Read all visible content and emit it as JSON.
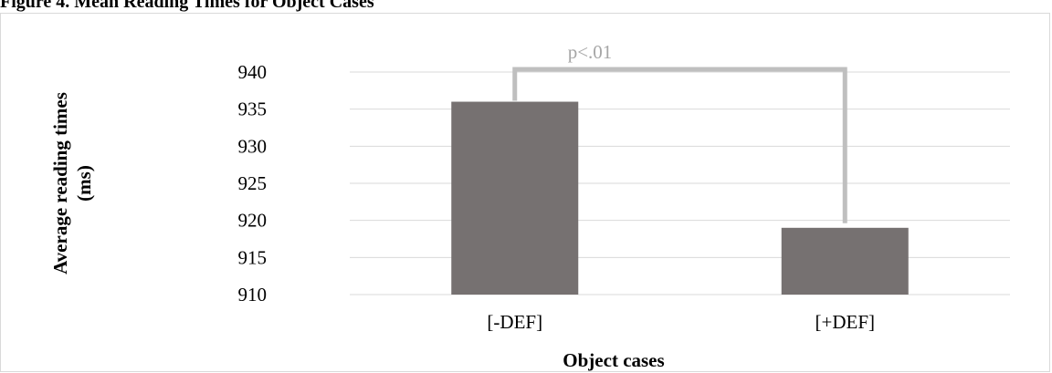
{
  "caption": "Figure 4. Mean Reading Times for Object Cases",
  "chart_data": {
    "type": "bar",
    "categories": [
      "[-DEF]",
      "[+DEF]"
    ],
    "values": [
      936,
      919
    ],
    "xlabel": "Object cases",
    "ylabel_lines": [
      "Average reading times",
      "(ms)"
    ],
    "ylim": [
      910,
      940
    ],
    "yticks": [
      "910",
      "915",
      "920",
      "925",
      "930",
      "935",
      "940"
    ],
    "grid": true,
    "bar_color": "#767171",
    "annotation": {
      "text": "p<.01",
      "color": "#bfbfbf"
    }
  }
}
